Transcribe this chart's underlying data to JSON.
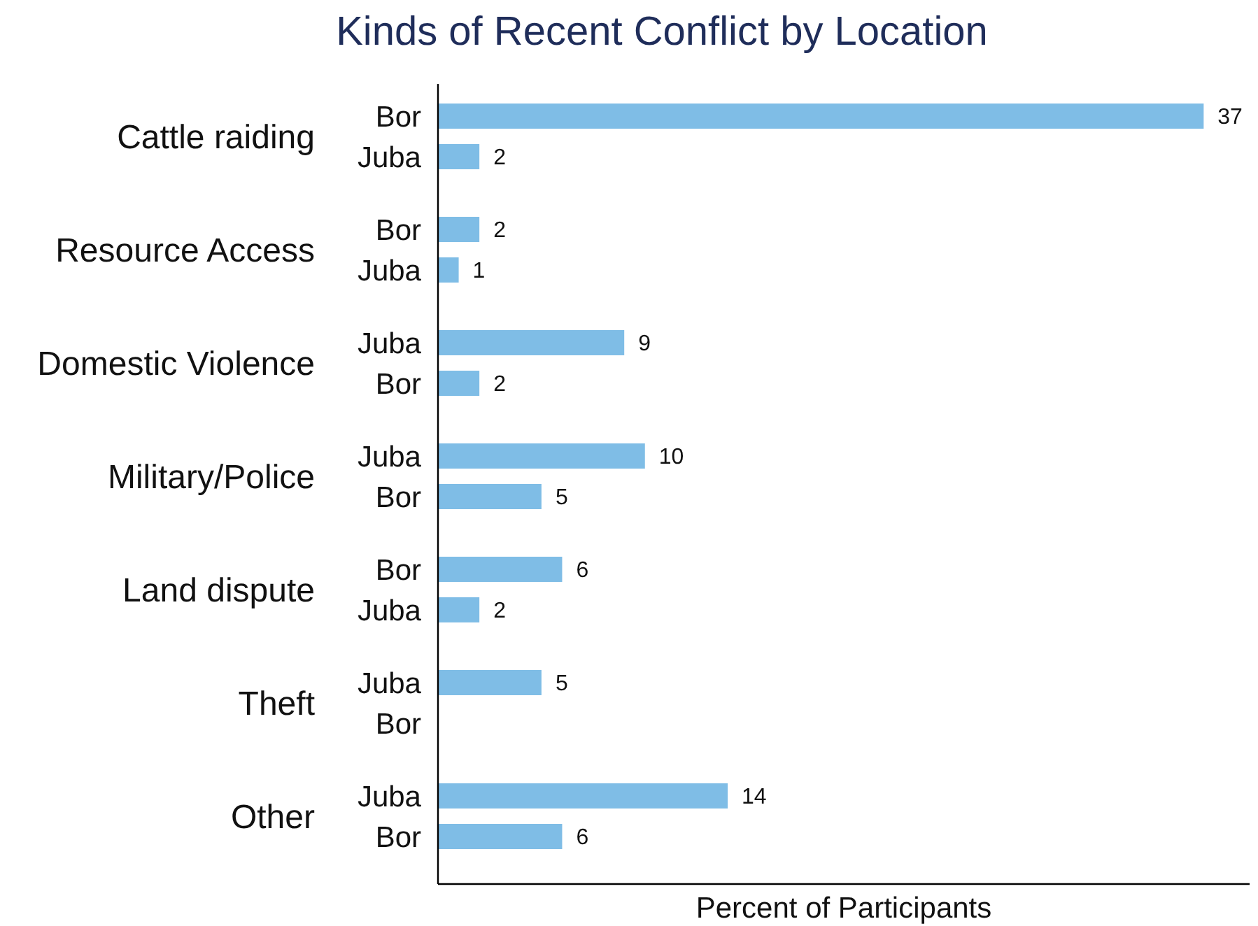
{
  "chart_data": {
    "type": "bar",
    "orientation": "horizontal",
    "title": "Kinds of Recent Conflict by Location",
    "xlabel": "Percent of Participants",
    "categories": [
      "Bor",
      "Juba",
      "Bor",
      "Juba",
      "Juba",
      "Bor",
      "Juba",
      "Bor",
      "Bor",
      "Juba",
      "Juba",
      "Bor",
      "Juba",
      "Bor"
    ],
    "values": [
      37,
      2,
      2,
      1,
      9,
      2,
      10,
      5,
      6,
      2,
      5,
      null,
      14,
      6
    ],
    "color": "#7fbde6",
    "data_labels": true,
    "tick_labels": "y",
    "annotations": [
      "Cattle raiding",
      "Resource Access",
      "Domestic Violence",
      "Military/Police",
      "Land dispute",
      "Theft",
      "Other"
    ]
  }
}
